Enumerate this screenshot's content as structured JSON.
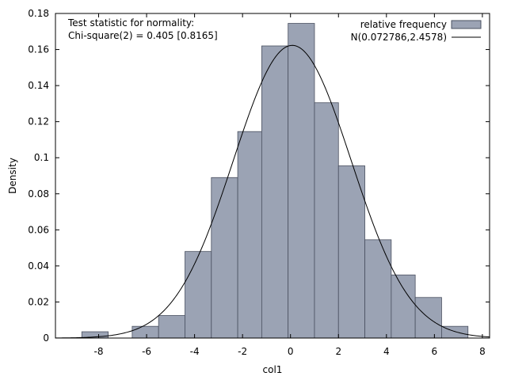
{
  "chart_data": {
    "type": "bar",
    "xlabel": "col1",
    "ylabel": "Density",
    "xlim": [
      -9.8,
      8.3
    ],
    "ylim": [
      0,
      0.18
    ],
    "xticks": [
      -8,
      -6,
      -4,
      -2,
      0,
      2,
      4,
      6,
      8
    ],
    "xtick_labels": [
      "-8",
      "-6",
      "-4",
      "-2",
      "0",
      "2",
      "4",
      "6",
      "8"
    ],
    "yticks": [
      0,
      0.02,
      0.04,
      0.06,
      0.08,
      0.1,
      0.12,
      0.14,
      0.16,
      0.18
    ],
    "ytick_labels": [
      "0",
      "0.02",
      "0.04",
      "0.06",
      "0.08",
      "0.1",
      "0.12",
      "0.14",
      "0.16",
      "0.18"
    ],
    "grid": false,
    "legend_position": "top-right",
    "annotation": {
      "line1": "Test statistic for normality:",
      "line2": "Chi-square(2) = 0.405 [0.8165]"
    },
    "histogram": {
      "name": "relative frequency",
      "color": "#9ba3b4",
      "edge_color": "#4a5060",
      "bins": [
        {
          "x0": -8.7,
          "x1": -7.6,
          "density": 0.0035
        },
        {
          "x0": -7.6,
          "x1": -6.6,
          "density": 0.0
        },
        {
          "x0": -6.6,
          "x1": -5.5,
          "density": 0.0065
        },
        {
          "x0": -5.5,
          "x1": -4.4,
          "density": 0.0125
        },
        {
          "x0": -4.4,
          "x1": -3.3,
          "density": 0.048
        },
        {
          "x0": -3.3,
          "x1": -2.2,
          "density": 0.089
        },
        {
          "x0": -2.2,
          "x1": -1.2,
          "density": 0.1145
        },
        {
          "x0": -1.2,
          "x1": -0.1,
          "density": 0.162
        },
        {
          "x0": -0.1,
          "x1": 1.0,
          "density": 0.1745
        },
        {
          "x0": 1.0,
          "x1": 2.0,
          "density": 0.1305
        },
        {
          "x0": 2.0,
          "x1": 3.1,
          "density": 0.0955
        },
        {
          "x0": 3.1,
          "x1": 4.2,
          "density": 0.0545
        },
        {
          "x0": 4.2,
          "x1": 5.2,
          "density": 0.035
        },
        {
          "x0": 5.2,
          "x1": 6.3,
          "density": 0.0225
        },
        {
          "x0": 6.3,
          "x1": 7.4,
          "density": 0.0065
        }
      ]
    },
    "curve": {
      "name": "N(0.072786,2.4578)",
      "mean": 0.072786,
      "sd": 2.4578,
      "x_range": [
        -9.8,
        8.3
      ],
      "color": "#000000"
    }
  }
}
